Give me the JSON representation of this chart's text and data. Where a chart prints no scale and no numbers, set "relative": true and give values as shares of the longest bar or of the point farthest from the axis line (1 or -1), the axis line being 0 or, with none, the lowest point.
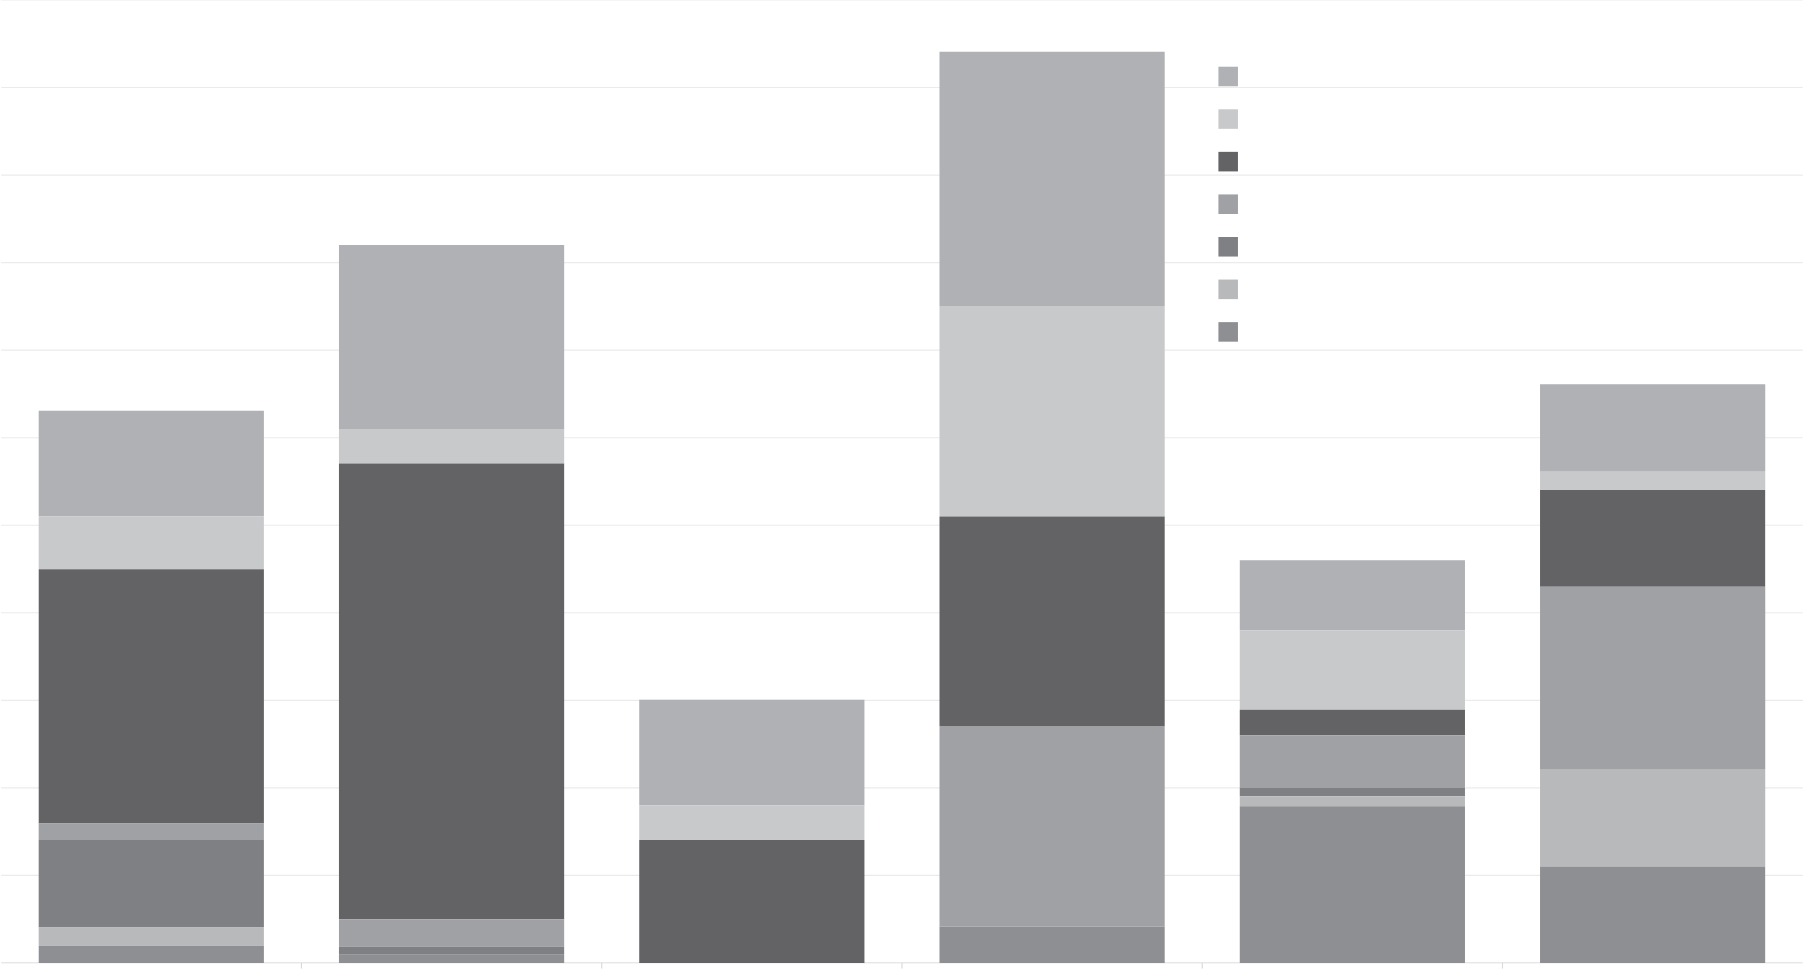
{
  "chart_data": {
    "type": "bar",
    "stacked": true,
    "relative": true,
    "grid": "y",
    "categories": [
      null,
      null,
      null,
      null,
      null,
      null
    ],
    "series": [
      {
        "color": "#8e8f92",
        "values": [
          0.019,
          0.009,
          0,
          0.04,
          0.172,
          0.106
        ]
      },
      {
        "color": "#b8b9bb",
        "values": [
          0.02,
          0,
          0,
          0,
          0.011,
          0.106
        ]
      },
      {
        "color": "#7f8083",
        "values": [
          0.096,
          0.009,
          0,
          0,
          0.009,
          0
        ]
      },
      {
        "color": "#a0a1a4",
        "values": [
          0.018,
          0.03,
          0,
          0.22,
          0.058,
          0.201
        ]
      },
      {
        "color": "#636365",
        "values": [
          0.279,
          0.5,
          0.135,
          0.23,
          0.028,
          0.106
        ]
      },
      {
        "color": "#c8c9cb",
        "values": [
          0.058,
          0.038,
          0.038,
          0.231,
          0.087,
          0.02
        ]
      },
      {
        "color": "#b0b1b4",
        "values": [
          0.116,
          0.202,
          0.116,
          0.279,
          0.077,
          0.096
        ]
      }
    ]
  }
}
